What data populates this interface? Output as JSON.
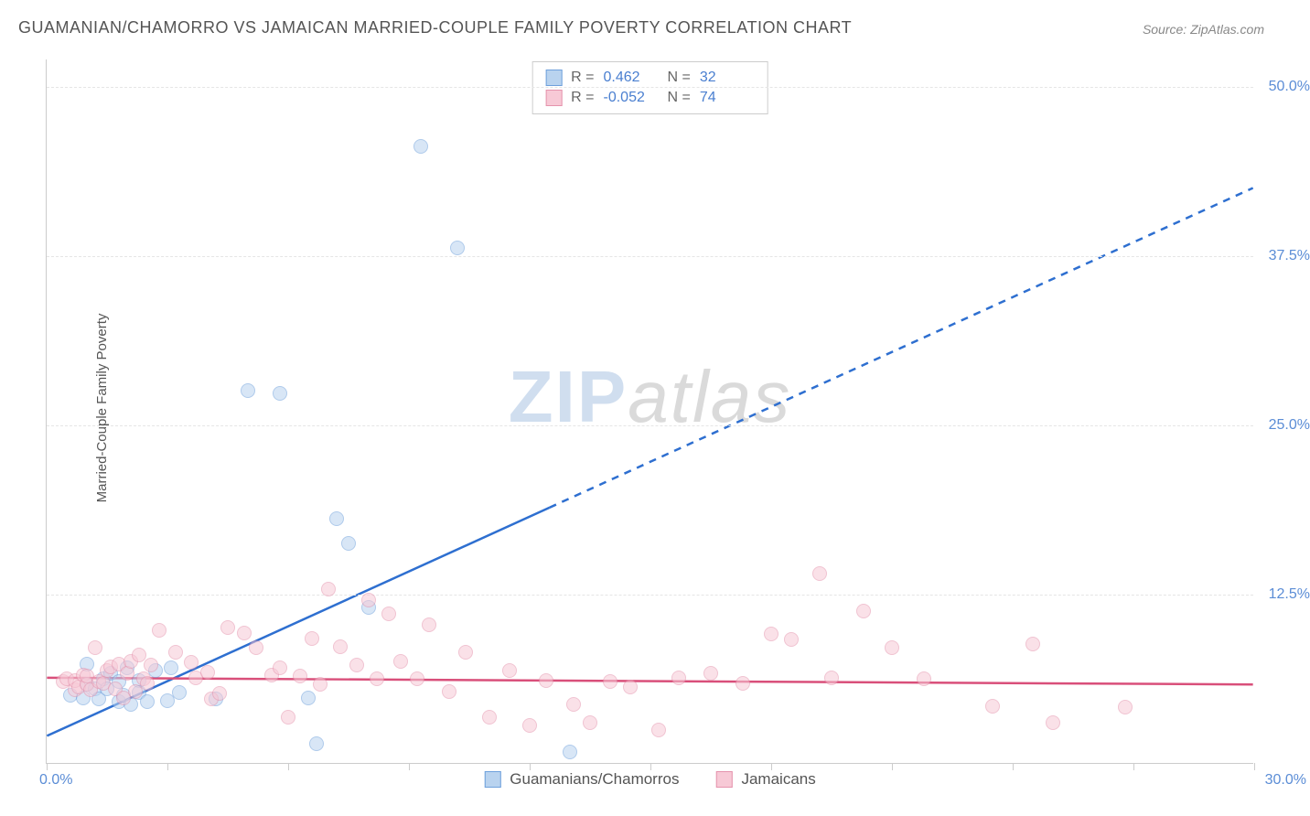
{
  "title": "GUAMANIAN/CHAMORRO VS JAMAICAN MARRIED-COUPLE FAMILY POVERTY CORRELATION CHART",
  "source": "Source: ZipAtlas.com",
  "ylabel": "Married-Couple Family Poverty",
  "watermark": {
    "part1": "ZIP",
    "part2": "atlas"
  },
  "chart": {
    "type": "scatter",
    "xlim": [
      0,
      30
    ],
    "ylim": [
      0,
      52
    ],
    "xaxis_label_left": "0.0%",
    "xaxis_label_right": "30.0%",
    "xtick_positions": [
      0,
      3,
      6,
      9,
      12,
      15,
      18,
      21,
      24,
      27,
      30
    ],
    "ytick_labels": [
      {
        "value": 12.5,
        "label": "12.5%"
      },
      {
        "value": 25.0,
        "label": "25.0%"
      },
      {
        "value": 37.5,
        "label": "37.5%"
      },
      {
        "value": 50.0,
        "label": "50.0%"
      }
    ],
    "background_color": "#ffffff",
    "grid_color": "#e5e5e5",
    "axis_color": "#cccccc",
    "title_fontsize": 18,
    "label_fontsize": 15,
    "tick_fontsize": 16,
    "tick_color": "#5b8dd6",
    "point_radius": 8,
    "point_opacity": 0.55
  },
  "series": [
    {
      "name": "Guamanians/Chamorros",
      "color_fill": "#b9d3ef",
      "color_stroke": "#6ea0dc",
      "R": "0.462",
      "N": "32",
      "trend": {
        "y_at_x0": 2.0,
        "y_at_x30": 42.5,
        "solid_until_x": 12.5,
        "color": "#2e6fd0",
        "width": 2.5
      },
      "points": [
        [
          0.6,
          5.0
        ],
        [
          0.9,
          4.8
        ],
        [
          1.0,
          5.8
        ],
        [
          1.0,
          7.3
        ],
        [
          1.2,
          5.5
        ],
        [
          1.3,
          4.7
        ],
        [
          1.4,
          6.2
        ],
        [
          1.5,
          5.5
        ],
        [
          1.6,
          6.6
        ],
        [
          1.8,
          6.0
        ],
        [
          1.8,
          4.5
        ],
        [
          1.9,
          5.0
        ],
        [
          2.0,
          7.0
        ],
        [
          2.1,
          4.3
        ],
        [
          2.3,
          6.1
        ],
        [
          2.3,
          5.2
        ],
        [
          2.5,
          4.5
        ],
        [
          2.7,
          6.8
        ],
        [
          3.0,
          4.6
        ],
        [
          3.1,
          7.0
        ],
        [
          3.3,
          5.2
        ],
        [
          4.2,
          4.7
        ],
        [
          5.0,
          27.5
        ],
        [
          5.8,
          27.3
        ],
        [
          6.5,
          4.8
        ],
        [
          6.7,
          1.4
        ],
        [
          7.2,
          18.0
        ],
        [
          7.5,
          16.2
        ],
        [
          8.0,
          11.5
        ],
        [
          9.3,
          45.5
        ],
        [
          10.2,
          38.0
        ],
        [
          13.0,
          0.8
        ]
      ]
    },
    {
      "name": "Jamaicans",
      "color_fill": "#f7c9d6",
      "color_stroke": "#e593ad",
      "R": "-0.052",
      "N": "74",
      "trend": {
        "y_at_x0": 6.3,
        "y_at_x30": 5.8,
        "solid_until_x": 30,
        "color": "#d94f7a",
        "width": 2.5
      },
      "points": [
        [
          0.4,
          6.0
        ],
        [
          0.5,
          6.2
        ],
        [
          0.7,
          5.4
        ],
        [
          0.7,
          6.1
        ],
        [
          0.8,
          5.6
        ],
        [
          0.9,
          6.5
        ],
        [
          1.0,
          5.8
        ],
        [
          1.0,
          6.4
        ],
        [
          1.1,
          5.4
        ],
        [
          1.2,
          8.5
        ],
        [
          1.3,
          6.0
        ],
        [
          1.4,
          5.9
        ],
        [
          1.5,
          6.8
        ],
        [
          1.6,
          7.1
        ],
        [
          1.7,
          5.5
        ],
        [
          1.8,
          7.3
        ],
        [
          1.9,
          4.8
        ],
        [
          2.0,
          6.6
        ],
        [
          2.1,
          7.5
        ],
        [
          2.2,
          5.3
        ],
        [
          2.3,
          8.0
        ],
        [
          2.4,
          6.2
        ],
        [
          2.5,
          5.9
        ],
        [
          2.6,
          7.2
        ],
        [
          2.8,
          9.8
        ],
        [
          3.2,
          8.2
        ],
        [
          3.6,
          7.4
        ],
        [
          3.7,
          6.3
        ],
        [
          4.0,
          6.7
        ],
        [
          4.1,
          4.7
        ],
        [
          4.3,
          5.1
        ],
        [
          4.5,
          10.0
        ],
        [
          4.9,
          9.6
        ],
        [
          5.2,
          8.5
        ],
        [
          5.6,
          6.5
        ],
        [
          5.8,
          7.0
        ],
        [
          6.0,
          3.4
        ],
        [
          6.3,
          6.4
        ],
        [
          6.6,
          9.2
        ],
        [
          6.8,
          5.8
        ],
        [
          7.0,
          12.8
        ],
        [
          7.3,
          8.6
        ],
        [
          7.7,
          7.2
        ],
        [
          8.0,
          12.0
        ],
        [
          8.2,
          6.2
        ],
        [
          8.5,
          11.0
        ],
        [
          8.8,
          7.5
        ],
        [
          9.2,
          6.2
        ],
        [
          9.5,
          10.2
        ],
        [
          10.0,
          5.3
        ],
        [
          10.4,
          8.2
        ],
        [
          11.0,
          3.4
        ],
        [
          11.5,
          6.8
        ],
        [
          12.0,
          2.8
        ],
        [
          12.4,
          6.1
        ],
        [
          13.1,
          4.3
        ],
        [
          13.5,
          3.0
        ],
        [
          14.0,
          6.0
        ],
        [
          14.5,
          5.6
        ],
        [
          15.2,
          2.4
        ],
        [
          15.7,
          6.3
        ],
        [
          16.5,
          6.6
        ],
        [
          17.3,
          5.9
        ],
        [
          18.0,
          9.5
        ],
        [
          18.5,
          9.1
        ],
        [
          19.2,
          14.0
        ],
        [
          19.5,
          6.3
        ],
        [
          20.3,
          11.2
        ],
        [
          21.0,
          8.5
        ],
        [
          21.8,
          6.2
        ],
        [
          23.5,
          4.2
        ],
        [
          24.5,
          8.8
        ],
        [
          25.0,
          3.0
        ],
        [
          26.8,
          4.1
        ]
      ]
    }
  ],
  "bottom_legend": [
    {
      "label": "Guamanians/Chamorros",
      "fill": "#b9d3ef",
      "stroke": "#6ea0dc"
    },
    {
      "label": "Jamaicans",
      "fill": "#f7c9d6",
      "stroke": "#e593ad"
    }
  ]
}
